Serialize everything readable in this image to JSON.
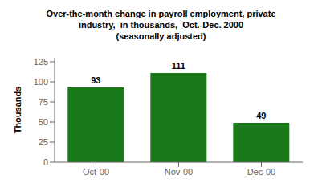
{
  "chart_data": {
    "type": "bar",
    "title": "Over-the-month change in payroll employment, private\nindustry,  in thousands,  Oct.-Dec. 2000\n(seasonally adjusted)",
    "ylabel": "Thousands",
    "categories": [
      "Oct-00",
      "Nov-00",
      "Dec-00"
    ],
    "values": [
      93,
      111,
      49
    ],
    "color": "#1a7a1a",
    "ylim": [
      0,
      130
    ],
    "yticks": [
      0,
      25,
      50,
      75,
      100,
      125
    ],
    "grid": false,
    "data_labels": true
  }
}
